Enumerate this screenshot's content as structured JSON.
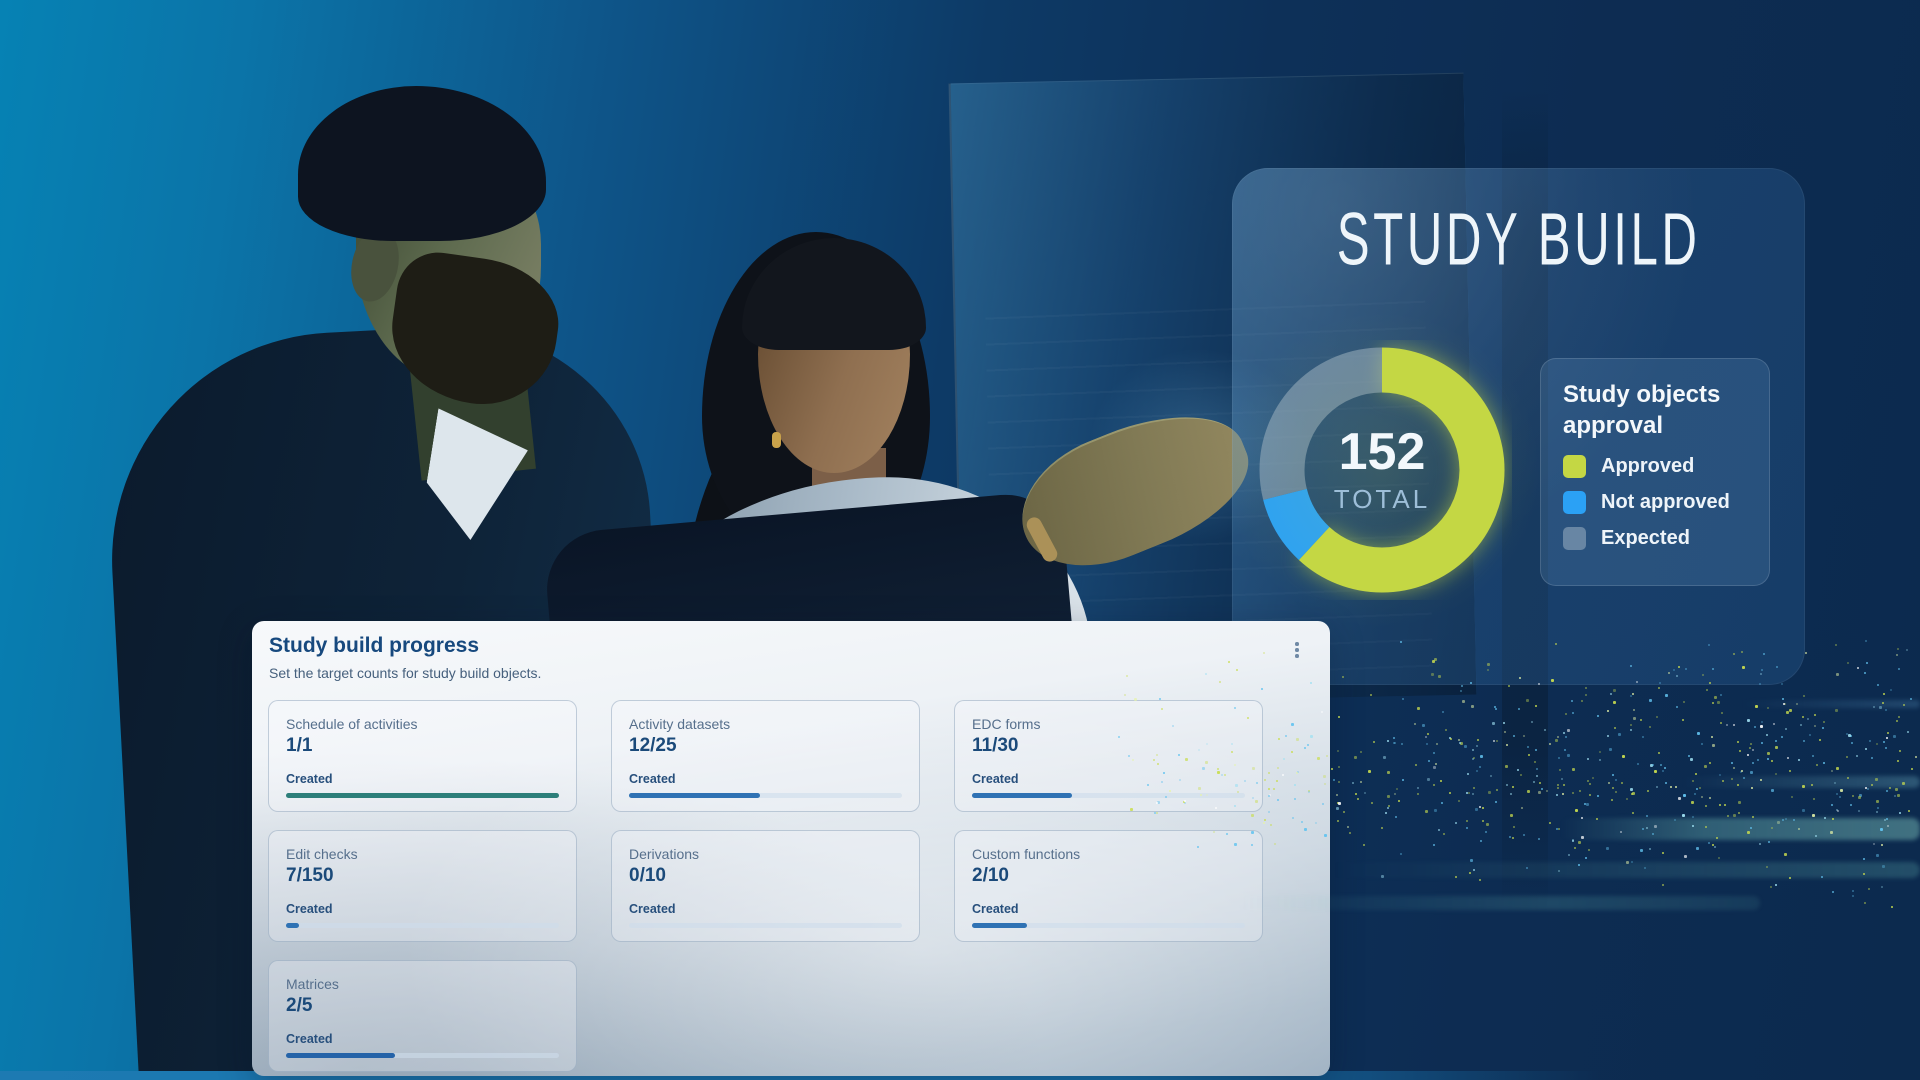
{
  "hero": {
    "title": "STUDY BUILD"
  },
  "chart_data": {
    "type": "pie",
    "variant": "donut",
    "title": "Study objects approval",
    "center_value": "152",
    "center_label": "TOTAL",
    "total": 152,
    "start_angle_deg": 0,
    "direction": "clockwise",
    "legend_position": "right",
    "segments": [
      {
        "label": "Approved",
        "value": 94,
        "color": "#c4d744",
        "opacity": 1
      },
      {
        "label": "Not approved",
        "value": 14,
        "color": "#2ba1f5",
        "opacity": 1
      },
      {
        "label": "Expected",
        "value": 44,
        "color": "#9db0c2",
        "opacity": 0.55
      }
    ]
  },
  "progress_card": {
    "title": "Study build progress",
    "subtitle": "Set the target counts for study build objects.",
    "menu_icon": "kebab-menu-icon",
    "tiles": [
      {
        "label": "Schedule of activities",
        "created": 1,
        "target": 1,
        "status": "Created",
        "bar_color": "#2d7f7a"
      },
      {
        "label": "Activity datasets",
        "created": 12,
        "target": 25,
        "status": "Created",
        "bar_color": "#2f72b4"
      },
      {
        "label": "EDC forms",
        "created": 11,
        "target": 30,
        "status": "Created",
        "bar_color": "#2f72b4"
      },
      {
        "label": "Edit checks",
        "created": 7,
        "target": 150,
        "status": "Created",
        "bar_color": "#2f72b4"
      },
      {
        "label": "Derivations",
        "created": 0,
        "target": 10,
        "status": "Created",
        "bar_color": "#2f72b4"
      },
      {
        "label": "Custom functions",
        "created": 2,
        "target": 10,
        "status": "Created",
        "bar_color": "#2f72b4"
      },
      {
        "label": "Matrices",
        "created": 2,
        "target": 5,
        "status": "Created",
        "bar_color": "#2563a8"
      }
    ]
  },
  "colors": {
    "accent_green": "#c4d744",
    "accent_blue": "#2ba1f5",
    "expected_gray": "#9db0c2",
    "panel_blue": "#1b5a8e"
  }
}
